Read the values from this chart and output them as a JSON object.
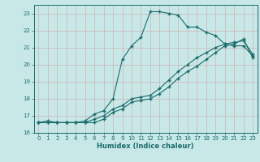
{
  "xlabel": "Humidex (Indice chaleur)",
  "bg_color": "#c8e8e8",
  "line_color": "#1a6b6b",
  "grid_color": "#b0d0d0",
  "xlim": [
    -0.5,
    23.5
  ],
  "ylim": [
    16,
    23.5
  ],
  "yticks": [
    16,
    17,
    18,
    19,
    20,
    21,
    22,
    23
  ],
  "xticks": [
    0,
    1,
    2,
    3,
    4,
    5,
    6,
    7,
    8,
    9,
    10,
    11,
    12,
    13,
    14,
    15,
    16,
    17,
    18,
    19,
    20,
    21,
    22,
    23
  ],
  "line1_x": [
    0,
    1,
    2,
    3,
    4,
    5,
    6,
    7,
    8,
    9,
    10,
    11,
    12,
    13,
    14,
    15,
    16,
    17,
    18,
    19,
    20,
    21,
    22,
    23
  ],
  "line1_y": [
    16.6,
    16.7,
    16.6,
    16.6,
    16.6,
    16.7,
    17.1,
    17.3,
    18.0,
    20.3,
    21.1,
    21.6,
    23.1,
    23.1,
    23.0,
    22.9,
    22.2,
    22.2,
    21.9,
    21.7,
    21.2,
    21.1,
    21.1,
    20.5
  ],
  "line2_x": [
    0,
    1,
    2,
    3,
    4,
    5,
    6,
    7,
    8,
    9,
    10,
    11,
    12,
    13,
    14,
    15,
    16,
    17,
    18,
    19,
    20,
    21,
    22,
    23
  ],
  "line2_y": [
    16.6,
    16.6,
    16.6,
    16.6,
    16.6,
    16.6,
    16.8,
    17.0,
    17.4,
    17.6,
    18.0,
    18.1,
    18.2,
    18.6,
    19.1,
    19.6,
    20.0,
    20.4,
    20.7,
    21.0,
    21.2,
    21.3,
    21.4,
    20.6
  ],
  "line3_x": [
    0,
    1,
    2,
    3,
    4,
    5,
    6,
    7,
    8,
    9,
    10,
    11,
    12,
    13,
    14,
    15,
    16,
    17,
    18,
    19,
    20,
    21,
    22,
    23
  ],
  "line3_y": [
    16.6,
    16.6,
    16.6,
    16.6,
    16.6,
    16.6,
    16.6,
    16.8,
    17.2,
    17.4,
    17.8,
    17.9,
    18.0,
    18.3,
    18.7,
    19.2,
    19.6,
    19.9,
    20.3,
    20.7,
    21.1,
    21.2,
    21.5,
    20.4
  ]
}
